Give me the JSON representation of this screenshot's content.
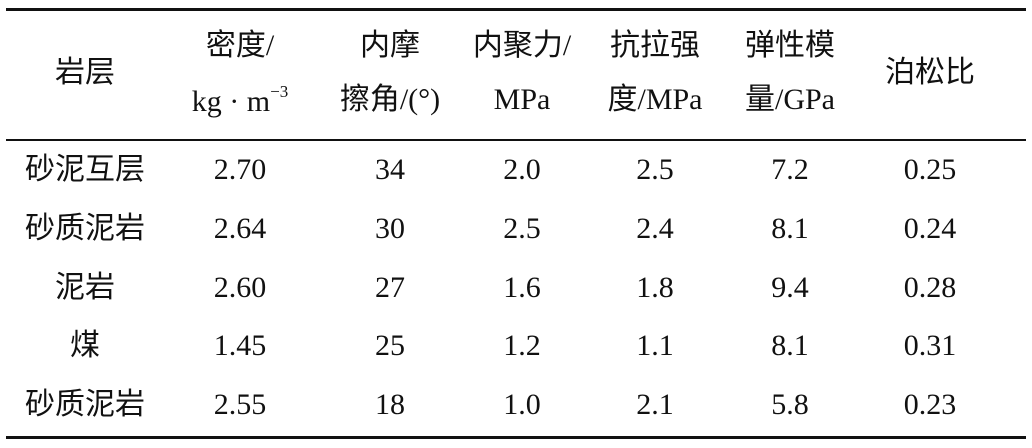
{
  "table": {
    "header": [
      {
        "lines": [
          "岩层"
        ]
      },
      {
        "lines": [
          "密度/",
          "kg · m"
        ],
        "sup": "−3"
      },
      {
        "lines": [
          "内摩",
          "擦角/(°)"
        ]
      },
      {
        "lines": [
          "内聚力/",
          "MPa"
        ]
      },
      {
        "lines": [
          "抗拉强",
          "度/MPa"
        ]
      },
      {
        "lines": [
          "弹性模",
          "量/GPa"
        ]
      },
      {
        "lines": [
          "泊松比"
        ]
      }
    ],
    "rows": [
      [
        "砂泥互层",
        "2.70",
        "34",
        "2.0",
        "2.5",
        "7.2",
        "0.25"
      ],
      [
        "砂质泥岩",
        "2.64",
        "30",
        "2.5",
        "2.4",
        "8.1",
        "0.24"
      ],
      [
        "泥岩",
        "2.60",
        "27",
        "1.6",
        "1.8",
        "9.4",
        "0.28"
      ],
      [
        "煤",
        "1.45",
        "25",
        "1.2",
        "1.1",
        "8.1",
        "0.31"
      ],
      [
        "砂质泥岩",
        "2.55",
        "18",
        "1.0",
        "2.1",
        "5.8",
        "0.23"
      ]
    ]
  }
}
